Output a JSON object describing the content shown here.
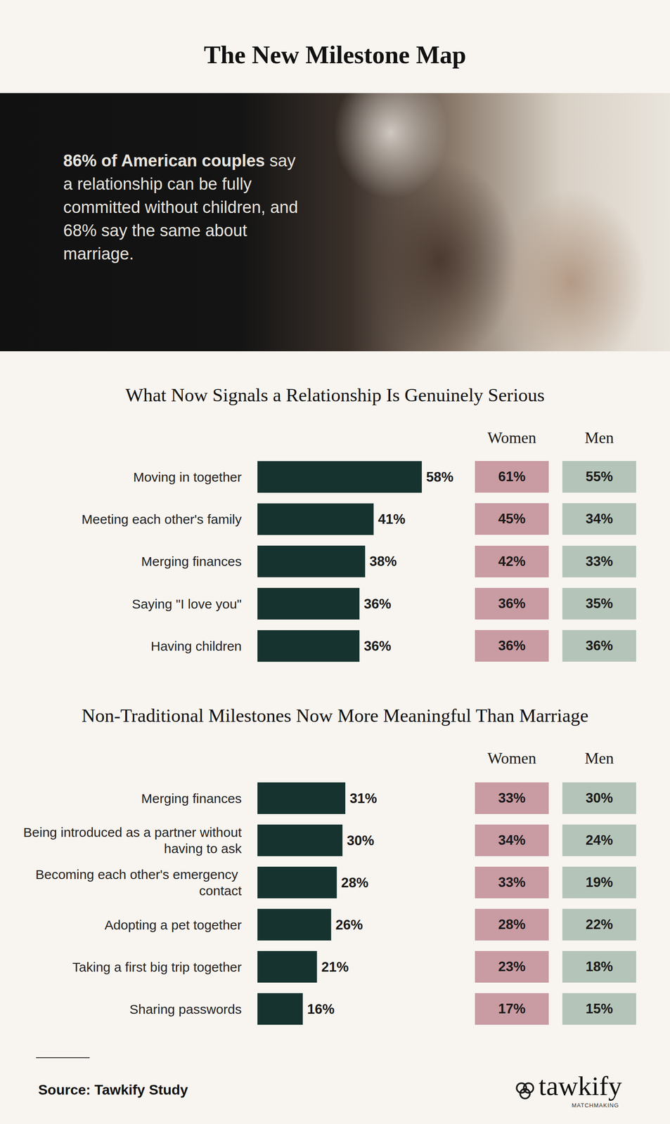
{
  "title": "The New Milestone Map",
  "hero": {
    "highlight": "86% of American couples",
    "text": "say a relationship can be fully committed without children, and 68% say the same about marriage."
  },
  "chart_data": [
    {
      "type": "bar",
      "title": "What Now Signals a Relationship Is Genuinely Serious",
      "orientation": "horizontal",
      "data_labels": true,
      "tick_labels": "y",
      "grid": false,
      "color": "#17332f",
      "categories": [
        "Moving in together",
        "Meeting each other's family",
        "Merging finances",
        "Saying \"I love you\"",
        "Having children"
      ],
      "values": [
        58,
        41,
        38,
        36,
        36
      ],
      "value_labels": [
        "58%",
        "41%",
        "38%",
        "36%",
        "36%"
      ],
      "xlim": [
        0,
        100
      ],
      "breakdown": [
        {
          "name": "Women",
          "color": "#c99ba2",
          "values": [
            61,
            45,
            42,
            36,
            36
          ],
          "value_labels": [
            "61%",
            "45%",
            "42%",
            "36%",
            "36%"
          ]
        },
        {
          "name": "Men",
          "color": "#b5c4b8",
          "values": [
            55,
            34,
            33,
            35,
            36
          ],
          "value_labels": [
            "55%",
            "34%",
            "33%",
            "35%",
            "36%"
          ]
        }
      ]
    },
    {
      "type": "bar",
      "title": "Non-Traditional Milestones Now More Meaningful Than Marriage",
      "orientation": "horizontal",
      "data_labels": true,
      "tick_labels": "y",
      "grid": false,
      "color": "#17332f",
      "categories": [
        "Merging finances",
        "Being introduced as a partner without having to ask",
        "Becoming each other's emergency contact",
        "Adopting a pet together",
        "Taking a first big trip together",
        "Sharing passwords"
      ],
      "values": [
        31,
        30,
        28,
        26,
        21,
        16
      ],
      "value_labels": [
        "31%",
        "30%",
        "28%",
        "26%",
        "21%",
        "16%"
      ],
      "xlim": [
        0,
        100
      ],
      "breakdown": [
        {
          "name": "Women",
          "color": "#c99ba2",
          "values": [
            33,
            34,
            33,
            28,
            23,
            17
          ],
          "value_labels": [
            "33%",
            "34%",
            "33%",
            "28%",
            "23%",
            "17%"
          ]
        },
        {
          "name": "Men",
          "color": "#b5c4b8",
          "values": [
            30,
            24,
            19,
            22,
            18,
            15
          ],
          "value_labels": [
            "30%",
            "24%",
            "19%",
            "22%",
            "18%",
            "15%"
          ]
        }
      ]
    }
  ],
  "footer": {
    "source_label": "Source:",
    "source": "Tawkify Study",
    "logo": "tawkify",
    "logo_sub": "MATCHMAKING"
  }
}
